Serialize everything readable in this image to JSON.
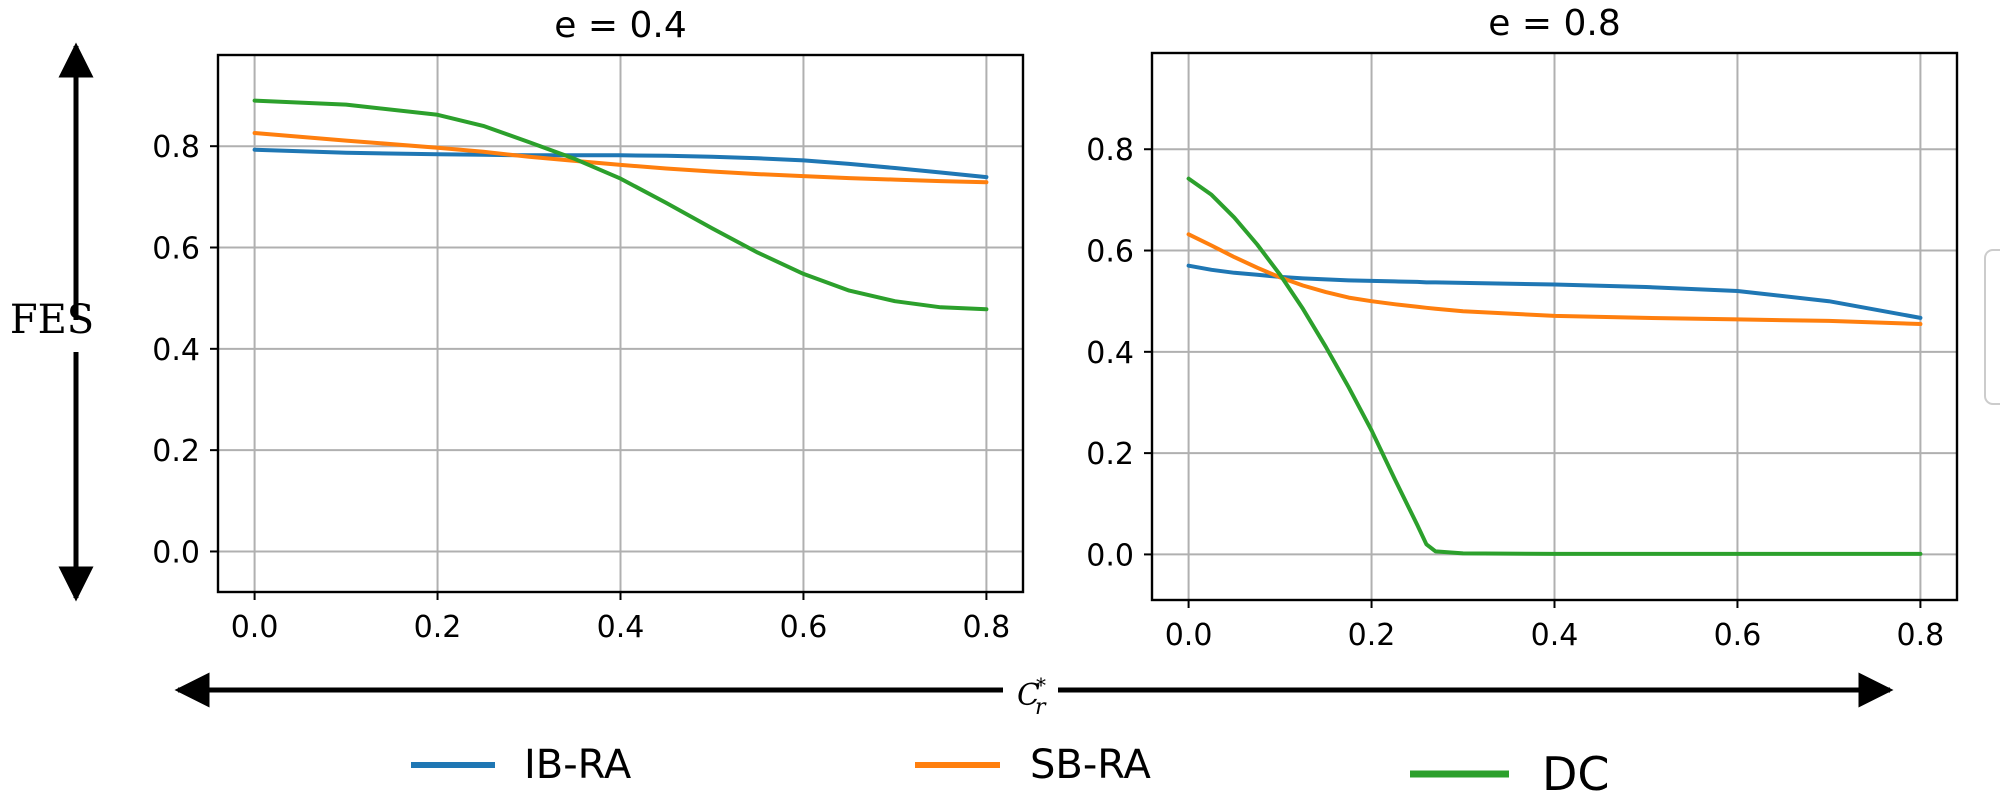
{
  "chart_data": [
    {
      "type": "line",
      "title": "e = 0.4",
      "xlabel": "",
      "ylabel": "",
      "xlim": [
        -0.04,
        0.84
      ],
      "ylim": [
        -0.08,
        0.98
      ],
      "xticks": [
        0.0,
        0.2,
        0.4,
        0.6,
        0.8
      ],
      "yticks": [
        0.0,
        0.2,
        0.4,
        0.6,
        0.8
      ],
      "xtick_labels": [
        "0.0",
        "0.2",
        "0.4",
        "0.6",
        "0.8"
      ],
      "ytick_labels": [
        "0.0",
        "0.2",
        "0.4",
        "0.6",
        "0.8"
      ],
      "grid": true,
      "x": [
        0.0,
        0.1,
        0.2,
        0.25,
        0.3,
        0.35,
        0.4,
        0.45,
        0.5,
        0.55,
        0.6,
        0.65,
        0.7,
        0.75,
        0.8
      ],
      "series": [
        {
          "name": "IB-RA",
          "color": "#1f77b4",
          "values": [
            0.793,
            0.787,
            0.784,
            0.783,
            0.782,
            0.782,
            0.782,
            0.781,
            0.779,
            0.776,
            0.772,
            0.765,
            0.757,
            0.748,
            0.739
          ]
        },
        {
          "name": "SB-RA",
          "color": "#ff7f0e",
          "values": [
            0.826,
            0.811,
            0.797,
            0.789,
            0.779,
            0.771,
            0.763,
            0.756,
            0.75,
            0.745,
            0.741,
            0.737,
            0.734,
            0.731,
            0.729
          ]
        },
        {
          "name": "DC",
          "color": "#2ca02c",
          "values": [
            0.89,
            0.882,
            0.862,
            0.84,
            0.808,
            0.775,
            0.736,
            0.688,
            0.638,
            0.59,
            0.548,
            0.515,
            0.494,
            0.482,
            0.478
          ]
        }
      ]
    },
    {
      "type": "line",
      "title": "e = 0.8",
      "xlabel": "",
      "ylabel": "",
      "xlim": [
        -0.04,
        0.84
      ],
      "ylim": [
        -0.09,
        0.99
      ],
      "xticks": [
        0.0,
        0.2,
        0.4,
        0.6,
        0.8
      ],
      "yticks": [
        0.0,
        0.2,
        0.4,
        0.6,
        0.8
      ],
      "xtick_labels": [
        "0.0",
        "0.2",
        "0.4",
        "0.6",
        "0.8"
      ],
      "ytick_labels": [
        "0.0",
        "0.2",
        "0.4",
        "0.6",
        "0.8"
      ],
      "grid": true,
      "x": [
        0.0,
        0.025,
        0.05,
        0.075,
        0.1,
        0.125,
        0.15,
        0.175,
        0.2,
        0.225,
        0.25,
        0.26,
        0.27,
        0.3,
        0.4,
        0.5,
        0.6,
        0.7,
        0.8
      ],
      "series": [
        {
          "name": "IB-RA",
          "color": "#1f77b4",
          "values": [
            0.57,
            0.562,
            0.556,
            0.552,
            0.548,
            0.545,
            0.543,
            0.541,
            0.54,
            0.539,
            0.538,
            0.537,
            0.537,
            0.536,
            0.533,
            0.528,
            0.52,
            0.5,
            0.467
          ]
        },
        {
          "name": "SB-RA",
          "color": "#ff7f0e",
          "values": [
            0.632,
            0.61,
            0.587,
            0.566,
            0.547,
            0.531,
            0.518,
            0.507,
            0.5,
            0.494,
            0.489,
            0.487,
            0.485,
            0.48,
            0.471,
            0.467,
            0.464,
            0.461,
            0.455
          ]
        },
        {
          "name": "DC",
          "color": "#2ca02c",
          "values": [
            0.742,
            0.71,
            0.665,
            0.612,
            0.552,
            0.485,
            0.41,
            0.33,
            0.245,
            0.15,
            0.058,
            0.02,
            0.006,
            0.002,
            0.001,
            0.001,
            0.001,
            0.001,
            0.001
          ]
        }
      ]
    }
  ],
  "axis_labels": {
    "y": "FES",
    "x_base": "C",
    "x_sub": "r",
    "x_sup": "*"
  },
  "legend": [
    {
      "label": "IB-RA",
      "color": "#1f77b4"
    },
    {
      "label": "SB-RA",
      "color": "#ff7f0e"
    },
    {
      "label": "DC",
      "color": "#2ca02c"
    }
  ]
}
